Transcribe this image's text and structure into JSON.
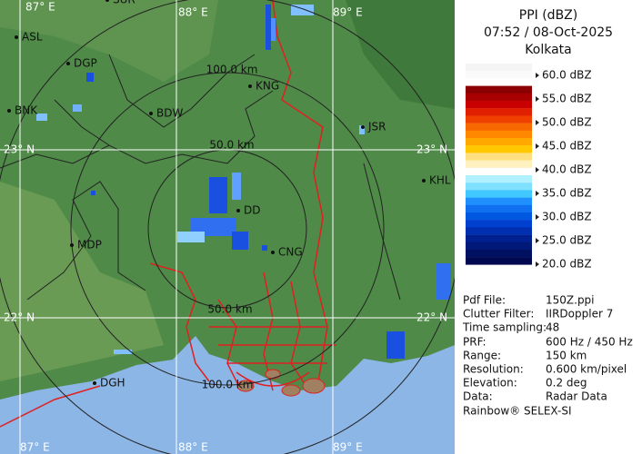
{
  "header": {
    "title": "PPI (dBZ)",
    "time": "07:52 / 08-Oct-2025",
    "site": "Kolkata"
  },
  "legend": [
    "60.0 dBZ",
    "55.0 dBZ",
    "50.0 dBZ",
    "45.0 dBZ",
    "40.0 dBZ",
    "35.0 dBZ",
    "30.0 dBZ",
    "25.0 dBZ",
    "20.0 dBZ"
  ],
  "info": [
    [
      "Pdf File:",
      "150Z.ppi"
    ],
    [
      "Clutter Filter:",
      "IIRDoppler 7"
    ],
    [
      "Time sampling:",
      "48"
    ],
    [
      "PRF:",
      "600 Hz / 450 Hz"
    ],
    [
      "Range:",
      "150 km"
    ],
    [
      "Resolution:",
      "0.600 km/pixel"
    ],
    [
      "Elevation:",
      "0.2 deg"
    ],
    [
      "Data:",
      "Radar Data"
    ]
  ],
  "footer": "Rainbow® SELEX-SI",
  "map": {
    "grid_labels": [
      "87° E",
      "88° E",
      "89° E",
      "87° E",
      "88° E",
      "89° E",
      "23° N",
      "23° N",
      "22° N",
      "22° N"
    ],
    "range_labels": [
      "100.0 km",
      "50.0 km",
      "50.0 km",
      "100.0 km"
    ],
    "places": [
      "SUR",
      "ASL",
      "DGP",
      "BNK",
      "BDW",
      "KNG",
      "JSR",
      "KHL",
      "MDP",
      "DD",
      "CNG",
      "DGH"
    ]
  }
}
